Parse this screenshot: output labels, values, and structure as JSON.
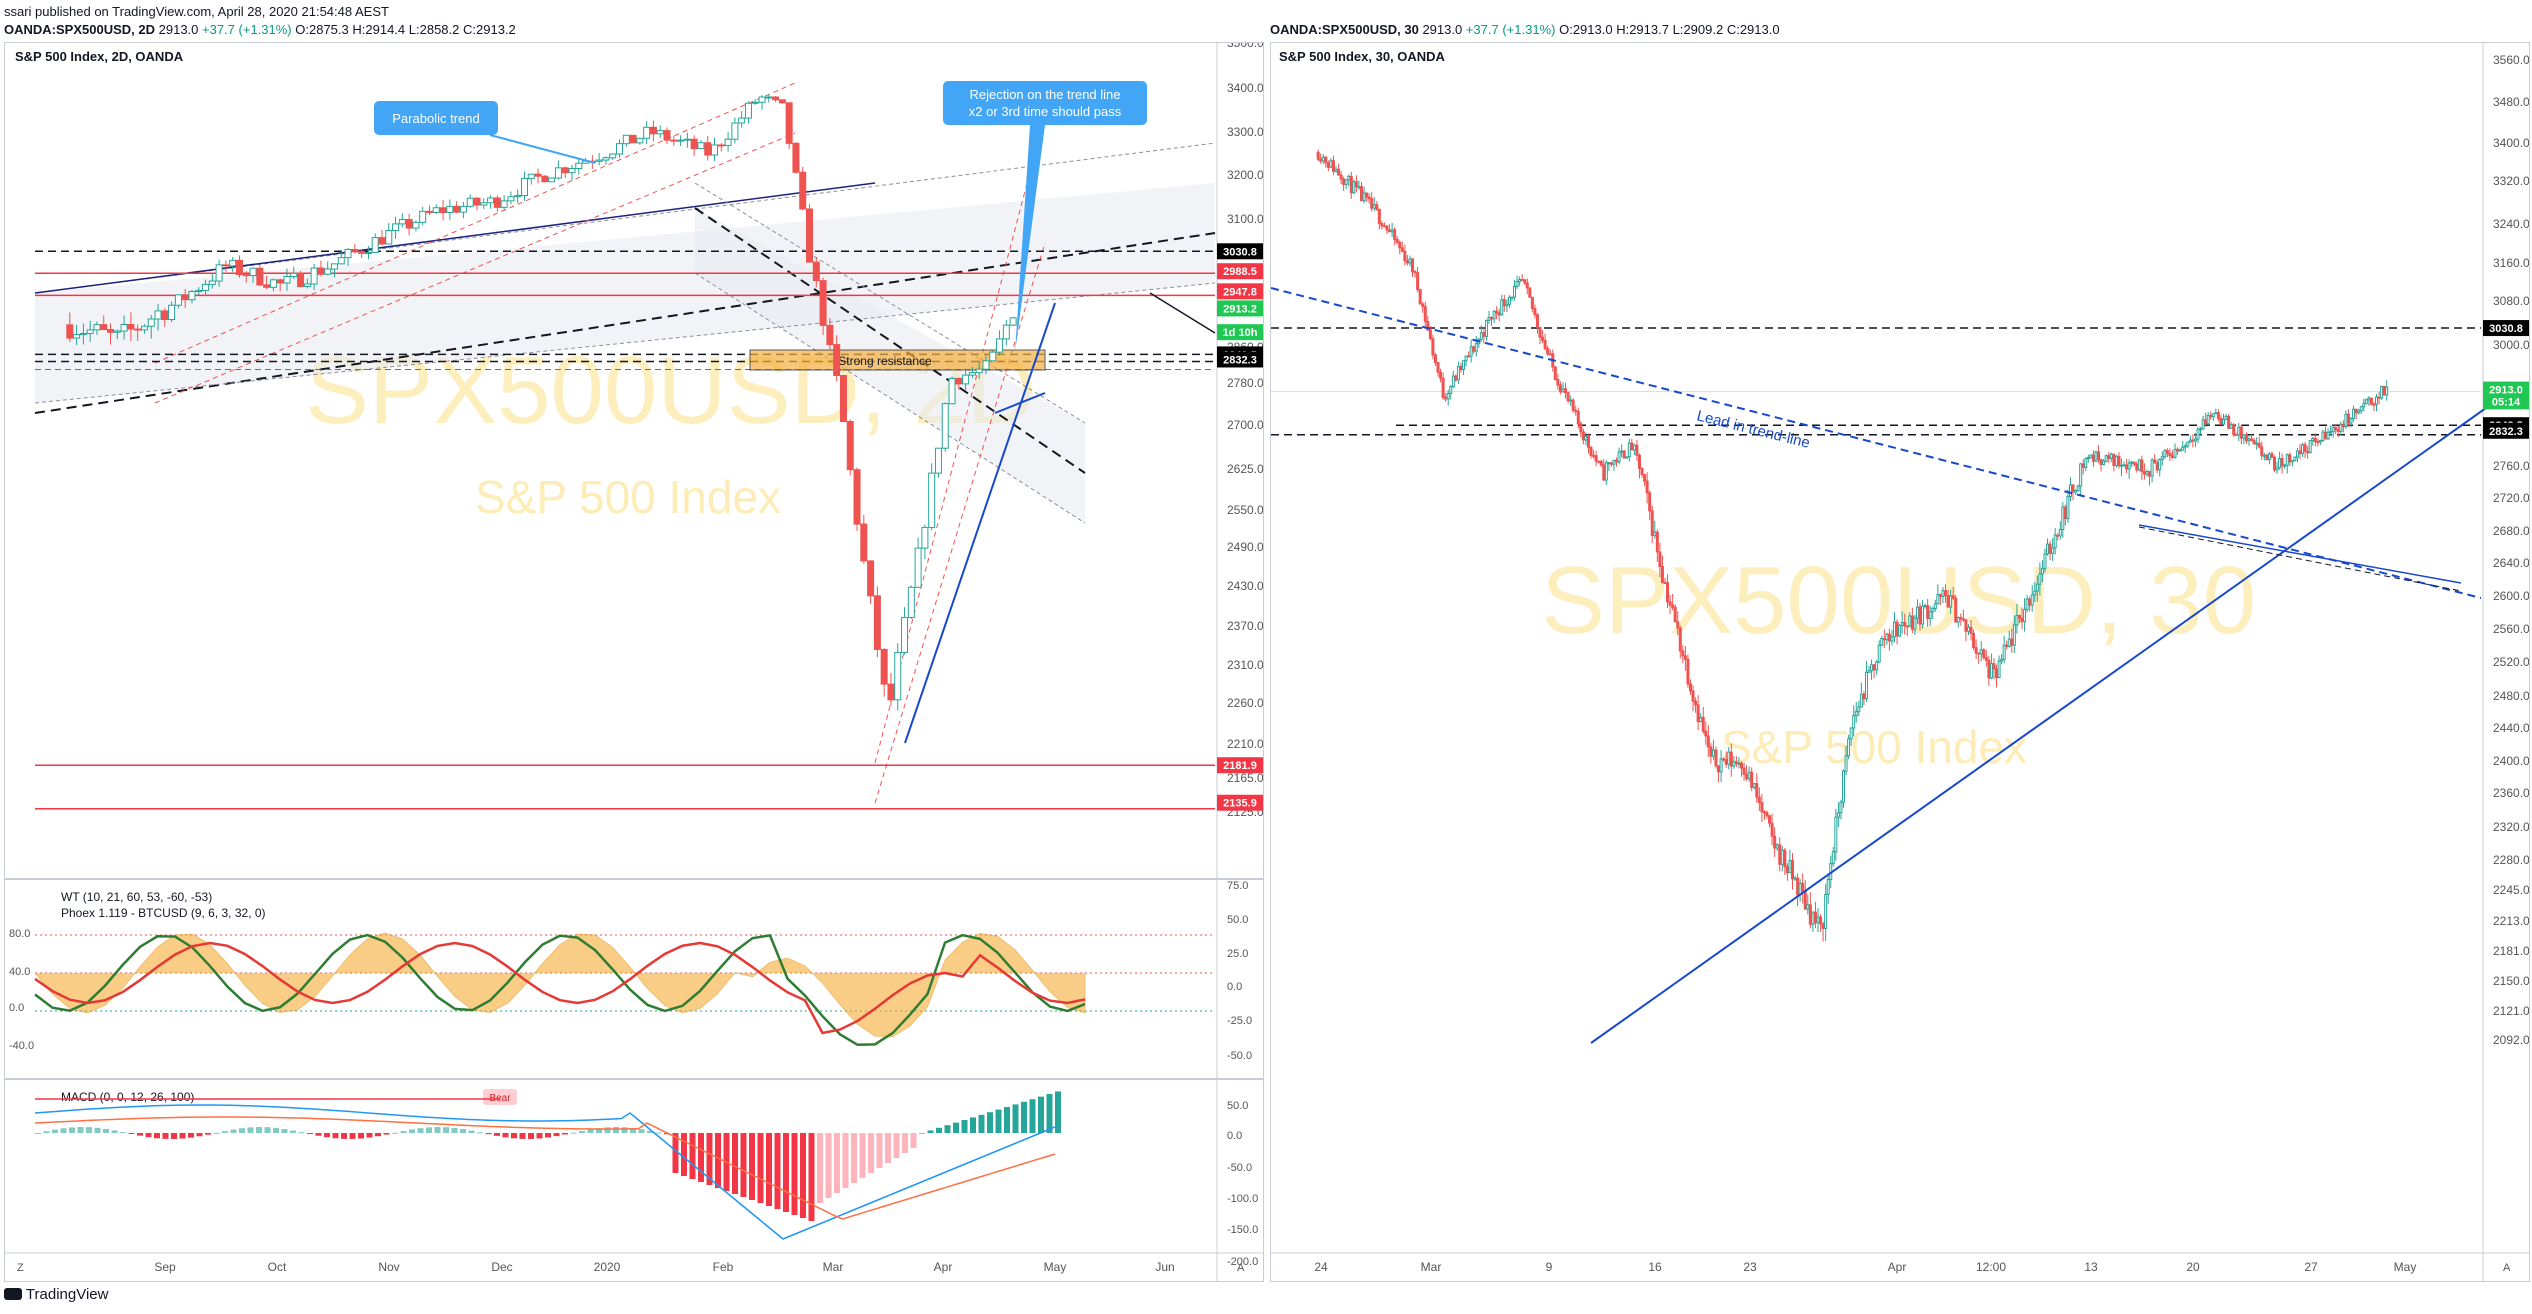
{
  "publish_line": "ssari published on TradingView.com, April 28, 2020 21:54:48 AEST",
  "left_quote": {
    "symbol": "OANDA:SPX500USD, 2D",
    "last": "2913.0",
    "change": "+37.7 (+1.31%)",
    "o": "2875.3",
    "h": "2914.4",
    "l": "2858.2",
    "c": "2913.2"
  },
  "right_quote": {
    "symbol": "OANDA:SPX500USD, 30",
    "last": "2913.0",
    "change": "+37.7 (+1.31%)",
    "o": "2913.0",
    "h": "2913.7",
    "l": "2909.2",
    "c": "2913.0"
  },
  "footer_brand": "TradingView",
  "colors": {
    "up": "#26a69a",
    "down": "#ef5350",
    "accent_blue": "#1848cc",
    "callout": "#42a5f5",
    "resistance": "#f5b041"
  },
  "chart_data": [
    {
      "type": "candlestick",
      "title": "S&P 500 Index, 2D, OANDA",
      "watermark_symbol": "SPX500USD, 2D",
      "watermark_name": "S&P 500 Index",
      "y_ticks": [
        "3500.0",
        "3400.0",
        "3300.0",
        "3200.0",
        "3100.0",
        "2995.0",
        "2910.0",
        "2860.0",
        "2780.0",
        "2700.0",
        "2625.0",
        "2550.0",
        "2490.0",
        "2430.0",
        "2370.0",
        "2310.0",
        "2260.0",
        "2210.0",
        "2165.0",
        "2125.0"
      ],
      "x_ticks": [
        "Sep",
        "Oct",
        "Nov",
        "Dec",
        "2020",
        "Feb",
        "Mar",
        "Apr",
        "May",
        "Jun"
      ],
      "ylim": [
        2100,
        3560
      ],
      "price_tags": [
        {
          "label": "3030.8",
          "value": 3030.8,
          "bg": "#000000"
        },
        {
          "label": "2988.5",
          "value": 2988.5,
          "bg": "#f23645"
        },
        {
          "label": "2947.8",
          "value": 2947.8,
          "bg": "#f23645"
        },
        {
          "label": "2913.2",
          "value": 2913.2,
          "bg": "#1ec853"
        },
        {
          "label": "1d 10h",
          "value": 2880,
          "bg": "#1ec853"
        },
        {
          "label": "2843.5",
          "value": 2843.5,
          "bg": "#000000"
        },
        {
          "label": "2832.3",
          "value": 2832.3,
          "bg": "#000000"
        },
        {
          "label": "2181.9",
          "value": 2181.9,
          "bg": "#f23645"
        },
        {
          "label": "2135.9",
          "value": 2135.9,
          "bg": "#f23645"
        }
      ],
      "annotations": [
        "Parabolic trend",
        "Rejection on the trend line",
        "x2 or 3rd time should pass",
        "Strong resistance"
      ],
      "close_path": [
        [
          "2019-08-01",
          2890
        ],
        [
          "2019-08-15",
          2870
        ],
        [
          "2019-09-01",
          2925
        ],
        [
          "2019-09-15",
          3000
        ],
        [
          "2019-10-01",
          2960
        ],
        [
          "2019-10-15",
          3000
        ],
        [
          "2019-11-01",
          3070
        ],
        [
          "2019-11-15",
          3120
        ],
        [
          "2019-12-01",
          3140
        ],
        [
          "2019-12-15",
          3200
        ],
        [
          "2020-01-01",
          3250
        ],
        [
          "2020-01-15",
          3300
        ],
        [
          "2020-02-01",
          3250
        ],
        [
          "2020-02-15",
          3380
        ],
        [
          "2020-02-22",
          3350
        ],
        [
          "2020-03-01",
          3000
        ],
        [
          "2020-03-08",
          2800
        ],
        [
          "2020-03-15",
          2500
        ],
        [
          "2020-03-23",
          2240
        ],
        [
          "2020-04-01",
          2480
        ],
        [
          "2020-04-10",
          2790
        ],
        [
          "2020-04-20",
          2810
        ],
        [
          "2020-04-28",
          2913
        ]
      ]
    },
    {
      "type": "oscillator",
      "title_wt": "WT (10, 21, 60, 53, -60, -53)",
      "title_phoex": "Phoex 1.119 - BTCUSD (9, 6, 3, 32, 0)",
      "left_ticks": [
        "80.0",
        "40.0",
        "0.0",
        "-40.0"
      ],
      "right_ticks": [
        "75.0",
        "50.0",
        "25.0",
        "0.0",
        "-25.0",
        "-50.0"
      ]
    },
    {
      "type": "histogram",
      "title": "MACD (0, 0, 12, 26, 100)",
      "badge": "Bear",
      "y_ticks": [
        "50.0",
        "0.0",
        "-50.0",
        "-100.0",
        "-150.0",
        "-200.0"
      ]
    },
    {
      "type": "candlestick",
      "title": "S&P 500 Index, 30, OANDA",
      "watermark_symbol": "SPX500USD, 30",
      "watermark_name": "S&P 500 Index",
      "y_ticks": [
        "3560.0",
        "3480.0",
        "3400.0",
        "3320.0",
        "3240.0",
        "3160.0",
        "3080.0",
        "3000.0",
        "2920.0",
        "2840.0",
        "2760.0",
        "2720.0",
        "2680.0",
        "2640.0",
        "2600.0",
        "2560.0",
        "2520.0",
        "2480.0",
        "2440.0",
        "2400.0",
        "2360.0",
        "2320.0",
        "2280.0",
        "2245.0",
        "2213.0",
        "2181.0",
        "2150.0",
        "2121.0",
        "2092.0"
      ],
      "x_ticks": [
        "24",
        "Mar",
        "9",
        "16",
        "23",
        "Apr",
        "12:00",
        "13",
        "20",
        "27",
        "May"
      ],
      "ylim": [
        2080,
        3580
      ],
      "price_tags": [
        {
          "label": "3030.8",
          "value": 3030.8,
          "bg": "#000000"
        },
        {
          "label": "2913.0",
          "value": 2913.0,
          "bg": "#1ec853"
        },
        {
          "label": "05:14",
          "value": 2890,
          "bg": "#1ec853"
        },
        {
          "label": "2843.5",
          "value": 2843.5,
          "bg": "#000000"
        },
        {
          "label": "2832.3",
          "value": 2832.3,
          "bg": "#000000"
        }
      ],
      "annotations": [
        "Lead in trend-line"
      ],
      "close_path": [
        [
          "2020-02-20",
          3380
        ],
        [
          "2020-02-24",
          3250
        ],
        [
          "2020-02-26",
          3150
        ],
        [
          "2020-02-28",
          2900
        ],
        [
          "2020-03-02",
          3050
        ],
        [
          "2020-03-04",
          3120
        ],
        [
          "2020-03-06",
          2950
        ],
        [
          "2020-03-09",
          2750
        ],
        [
          "2020-03-11",
          2800
        ],
        [
          "2020-03-13",
          2620
        ],
        [
          "2020-03-16",
          2400
        ],
        [
          "2020-03-18",
          2400
        ],
        [
          "2020-03-20",
          2300
        ],
        [
          "2020-03-23",
          2200
        ],
        [
          "2020-03-25",
          2450
        ],
        [
          "2020-03-27",
          2550
        ],
        [
          "2020-03-31",
          2600
        ],
        [
          "2020-04-03",
          2500
        ],
        [
          "2020-04-06",
          2630
        ],
        [
          "2020-04-09",
          2780
        ],
        [
          "2020-04-13",
          2760
        ],
        [
          "2020-04-15",
          2800
        ],
        [
          "2020-04-17",
          2870
        ],
        [
          "2020-04-21",
          2760
        ],
        [
          "2020-04-23",
          2800
        ],
        [
          "2020-04-24",
          2820
        ],
        [
          "2020-04-28",
          2913
        ]
      ]
    }
  ]
}
